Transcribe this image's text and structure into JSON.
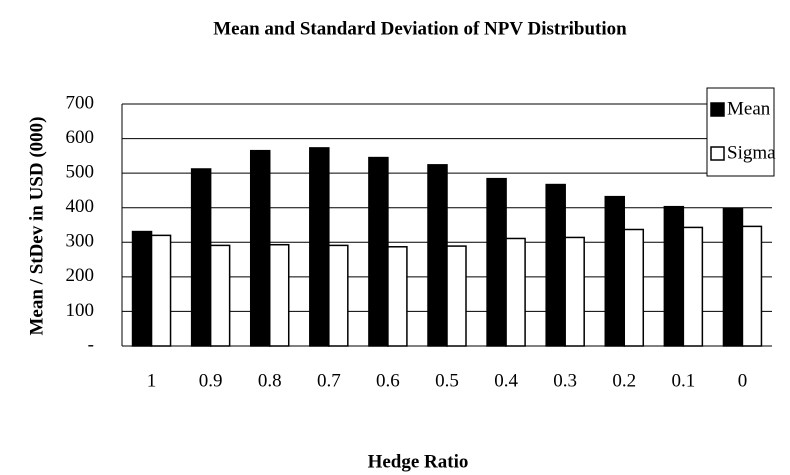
{
  "chart_data": {
    "type": "bar",
    "title": "Mean and Standard Deviation of NPV Distribution",
    "x_label": "Hedge Ratio",
    "y_label": "Mean / StDev in USD (000)",
    "categories": [
      "1",
      "0.9",
      "0.8",
      "0.7",
      "0.6",
      "0.5",
      "0.4",
      "0.3",
      "0.2",
      "0.1",
      "0"
    ],
    "series": [
      {
        "name": "Mean",
        "color": "#000000",
        "values": [
          331,
          512,
          565,
          573,
          545,
          524,
          484,
          467,
          432,
          403,
          398
        ]
      },
      {
        "name": "Sigma",
        "color": "#ffffff",
        "values": [
          320,
          291,
          293,
          291,
          287,
          289,
          311,
          314,
          337,
          343,
          346
        ]
      }
    ],
    "ylim": [
      0,
      700
    ],
    "yticks": [
      {
        "value": 0,
        "label": "-"
      },
      100,
      200,
      300,
      400,
      500,
      600,
      700
    ],
    "grid": true,
    "legend": "top-right"
  }
}
